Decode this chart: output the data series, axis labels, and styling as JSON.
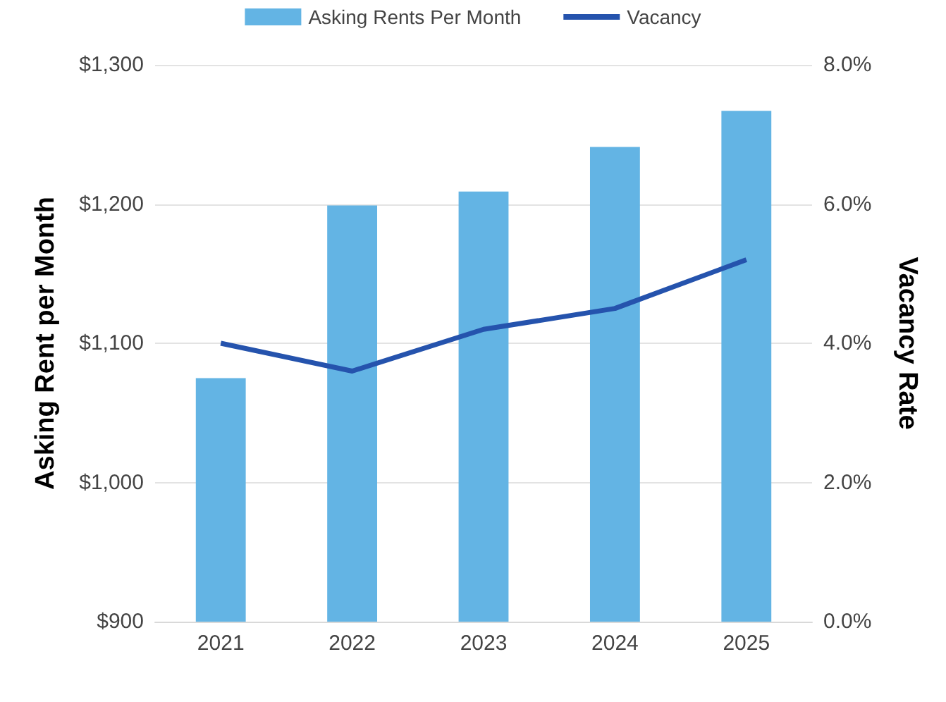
{
  "chart_data": {
    "type": "bar",
    "categories": [
      "2021",
      "2022",
      "2023",
      "2024",
      "2025"
    ],
    "series": [
      {
        "name": "Asking Rents Per Month",
        "color": "#63b4e4",
        "values": [
          1075,
          1199,
          1209,
          1241,
          1267
        ]
      },
      {
        "name": "Vacancy",
        "type": "line",
        "axis": "y2",
        "color": "#2553ad",
        "values": [
          4.0,
          3.6,
          4.2,
          4.5,
          5.2
        ]
      }
    ],
    "ylabel": "Asking Rent per Month",
    "y2label": "Vacancy Rate",
    "ylim": [
      900,
      1300
    ],
    "yticks": [
      {
        "value": 900,
        "label": "$900"
      },
      {
        "value": 1000,
        "label": "$1,000"
      },
      {
        "value": 1100,
        "label": "$1,100"
      },
      {
        "value": 1200,
        "label": "$1,200"
      },
      {
        "value": 1300,
        "label": "$1,300"
      }
    ],
    "y2lim": [
      0,
      8
    ],
    "y2ticks": [
      {
        "value": 0,
        "label": "0.0%"
      },
      {
        "value": 2,
        "label": "2.0%"
      },
      {
        "value": 4,
        "label": "4.0%"
      },
      {
        "value": 6,
        "label": "6.0%"
      },
      {
        "value": 8,
        "label": "8.0%"
      }
    ],
    "grid": "y",
    "legend": "top",
    "marker": "none"
  }
}
